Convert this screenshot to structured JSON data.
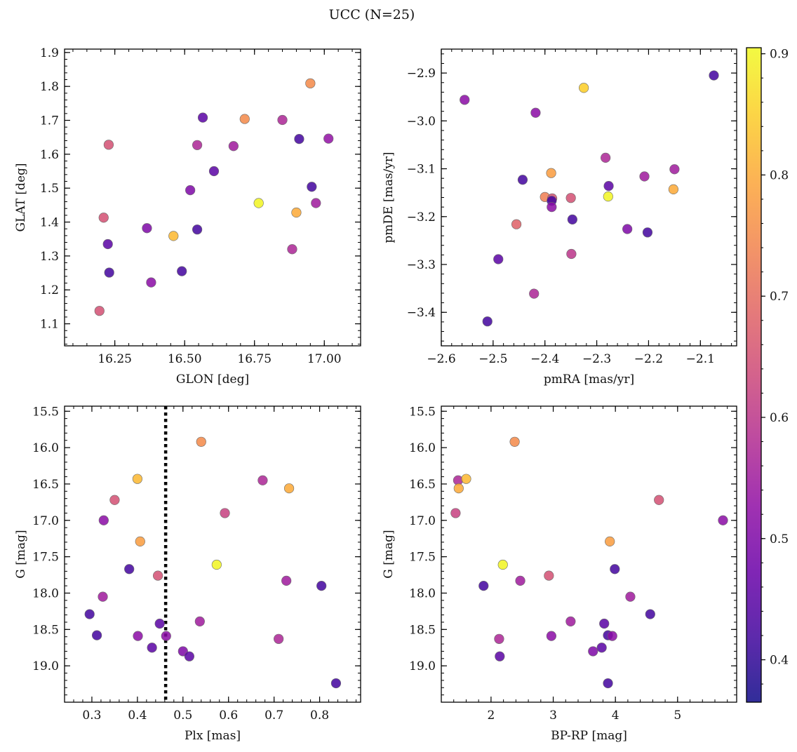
{
  "figure": {
    "title": "UCC (N=25)"
  },
  "colorbar": {
    "colormap": "plasma",
    "range": [
      0.365,
      0.905
    ],
    "ticks": [
      "0.4",
      "0.5",
      "0.6",
      "0.7",
      "0.8",
      "0.9"
    ]
  },
  "chart_data": [
    {
      "type": "scatter",
      "xlabel": "GLON [deg]",
      "ylabel": "GLAT [deg]",
      "xlim": [
        16.07,
        17.13
      ],
      "ylim": [
        1.035,
        1.91
      ],
      "xticks": [
        "16.25",
        "16.50",
        "16.75",
        "17.00"
      ],
      "yticks": [
        "1.1",
        "1.2",
        "1.3",
        "1.4",
        "1.5",
        "1.6",
        "1.7",
        "1.8",
        "1.9"
      ],
      "points": [
        {
          "x": 16.95,
          "y": 1.809,
          "c": 0.75
        },
        {
          "x": 16.715,
          "y": 1.704,
          "c": 0.75
        },
        {
          "x": 16.565,
          "y": 1.708,
          "c": 0.45
        },
        {
          "x": 16.85,
          "y": 1.701,
          "c": 0.57
        },
        {
          "x": 16.91,
          "y": 1.645,
          "c": 0.42
        },
        {
          "x": 17.015,
          "y": 1.646,
          "c": 0.53
        },
        {
          "x": 16.228,
          "y": 1.628,
          "c": 0.65
        },
        {
          "x": 16.545,
          "y": 1.627,
          "c": 0.57
        },
        {
          "x": 16.675,
          "y": 1.624,
          "c": 0.55
        },
        {
          "x": 16.605,
          "y": 1.55,
          "c": 0.45
        },
        {
          "x": 16.955,
          "y": 1.504,
          "c": 0.42
        },
        {
          "x": 16.52,
          "y": 1.494,
          "c": 0.5
        },
        {
          "x": 16.765,
          "y": 1.456,
          "c": 0.9
        },
        {
          "x": 16.97,
          "y": 1.456,
          "c": 0.55
        },
        {
          "x": 16.9,
          "y": 1.428,
          "c": 0.8
        },
        {
          "x": 16.21,
          "y": 1.413,
          "c": 0.65
        },
        {
          "x": 16.365,
          "y": 1.382,
          "c": 0.5
        },
        {
          "x": 16.545,
          "y": 1.378,
          "c": 0.42
        },
        {
          "x": 16.46,
          "y": 1.359,
          "c": 0.82
        },
        {
          "x": 16.225,
          "y": 1.335,
          "c": 0.45
        },
        {
          "x": 16.885,
          "y": 1.32,
          "c": 0.57
        },
        {
          "x": 16.49,
          "y": 1.255,
          "c": 0.42
        },
        {
          "x": 16.23,
          "y": 1.251,
          "c": 0.42
        },
        {
          "x": 16.38,
          "y": 1.222,
          "c": 0.52
        },
        {
          "x": 16.195,
          "y": 1.138,
          "c": 0.65
        }
      ]
    },
    {
      "type": "scatter",
      "xlabel": "pmRA [mas/yr]",
      "ylabel": "pmDE [mas/yr]",
      "xlim": [
        -2.6,
        -2.03
      ],
      "ylim": [
        -3.47,
        -2.85
      ],
      "xticks": [
        "−2.6",
        "−2.5",
        "−2.4",
        "−2.3",
        "−2.2",
        "−2.1"
      ],
      "yticks": [
        "−3.4",
        "−3.3",
        "−3.2",
        "−3.1",
        "−3.0",
        "−2.9"
      ],
      "points": [
        {
          "x": -2.074,
          "y": -2.905,
          "c": 0.42
        },
        {
          "x": -2.325,
          "y": -2.931,
          "c": 0.85
        },
        {
          "x": -2.555,
          "y": -2.956,
          "c": 0.52
        },
        {
          "x": -2.418,
          "y": -2.983,
          "c": 0.52
        },
        {
          "x": -2.283,
          "y": -3.077,
          "c": 0.57
        },
        {
          "x": -2.15,
          "y": -3.101,
          "c": 0.55
        },
        {
          "x": -2.388,
          "y": -3.109,
          "c": 0.78
        },
        {
          "x": -2.208,
          "y": -3.116,
          "c": 0.55
        },
        {
          "x": -2.443,
          "y": -3.123,
          "c": 0.42
        },
        {
          "x": -2.277,
          "y": -3.136,
          "c": 0.45
        },
        {
          "x": -2.152,
          "y": -3.143,
          "c": 0.8
        },
        {
          "x": -2.278,
          "y": -3.158,
          "c": 0.9
        },
        {
          "x": -2.4,
          "y": -3.159,
          "c": 0.73
        },
        {
          "x": -2.35,
          "y": -3.161,
          "c": 0.65
        },
        {
          "x": -2.386,
          "y": -3.162,
          "c": 0.65
        },
        {
          "x": -2.387,
          "y": -3.167,
          "c": 0.42
        },
        {
          "x": -2.387,
          "y": -3.18,
          "c": 0.52
        },
        {
          "x": -2.347,
          "y": -3.206,
          "c": 0.42
        },
        {
          "x": -2.455,
          "y": -3.216,
          "c": 0.68
        },
        {
          "x": -2.241,
          "y": -3.226,
          "c": 0.5
        },
        {
          "x": -2.202,
          "y": -3.233,
          "c": 0.42
        },
        {
          "x": -2.349,
          "y": -3.278,
          "c": 0.6
        },
        {
          "x": -2.49,
          "y": -3.289,
          "c": 0.45
        },
        {
          "x": -2.421,
          "y": -3.361,
          "c": 0.57
        },
        {
          "x": -2.511,
          "y": -3.419,
          "c": 0.42
        }
      ]
    },
    {
      "type": "scatter",
      "xlabel": "Plx [mas]",
      "ylabel": "G [mag]",
      "xlim": [
        0.24,
        0.89
      ],
      "ylim": [
        19.5,
        15.43
      ],
      "y_inverted": true,
      "xticks": [
        "0.3",
        "0.4",
        "0.5",
        "0.6",
        "0.7",
        "0.8"
      ],
      "yticks": [
        "15.5",
        "16.0",
        "16.5",
        "17.0",
        "17.5",
        "18.0",
        "18.5",
        "19.0"
      ],
      "vline": 0.462,
      "points": [
        {
          "x": 0.54,
          "y": 15.92,
          "c": 0.75
        },
        {
          "x": 0.4,
          "y": 16.43,
          "c": 0.82
        },
        {
          "x": 0.675,
          "y": 16.45,
          "c": 0.57
        },
        {
          "x": 0.733,
          "y": 16.56,
          "c": 0.8
        },
        {
          "x": 0.35,
          "y": 16.72,
          "c": 0.65
        },
        {
          "x": 0.592,
          "y": 16.9,
          "c": 0.62
        },
        {
          "x": 0.326,
          "y": 17.0,
          "c": 0.52
        },
        {
          "x": 0.406,
          "y": 17.29,
          "c": 0.78
        },
        {
          "x": 0.574,
          "y": 17.61,
          "c": 0.9
        },
        {
          "x": 0.382,
          "y": 17.67,
          "c": 0.42
        },
        {
          "x": 0.445,
          "y": 17.76,
          "c": 0.65
        },
        {
          "x": 0.727,
          "y": 17.83,
          "c": 0.55
        },
        {
          "x": 0.804,
          "y": 17.9,
          "c": 0.42
        },
        {
          "x": 0.324,
          "y": 18.05,
          "c": 0.55
        },
        {
          "x": 0.295,
          "y": 18.29,
          "c": 0.42
        },
        {
          "x": 0.537,
          "y": 18.39,
          "c": 0.55
        },
        {
          "x": 0.449,
          "y": 18.42,
          "c": 0.45
        },
        {
          "x": 0.311,
          "y": 18.58,
          "c": 0.42
        },
        {
          "x": 0.401,
          "y": 18.59,
          "c": 0.52
        },
        {
          "x": 0.463,
          "y": 18.59,
          "c": 0.52
        },
        {
          "x": 0.71,
          "y": 18.63,
          "c": 0.57
        },
        {
          "x": 0.432,
          "y": 18.75,
          "c": 0.45
        },
        {
          "x": 0.5,
          "y": 18.8,
          "c": 0.5
        },
        {
          "x": 0.514,
          "y": 18.87,
          "c": 0.45
        },
        {
          "x": 0.836,
          "y": 19.24,
          "c": 0.42
        }
      ]
    },
    {
      "type": "scatter",
      "xlabel": "BP-RP [mag]",
      "ylabel": "G [mag]",
      "xlim": [
        1.2,
        5.95
      ],
      "ylim": [
        19.5,
        15.43
      ],
      "y_inverted": true,
      "xticks": [
        "2",
        "3",
        "4",
        "5"
      ],
      "yticks": [
        "15.5",
        "16.0",
        "16.5",
        "17.0",
        "17.5",
        "18.0",
        "18.5",
        "19.0"
      ],
      "points": [
        {
          "x": 2.38,
          "y": 15.92,
          "c": 0.75
        },
        {
          "x": 1.47,
          "y": 16.45,
          "c": 0.57
        },
        {
          "x": 1.6,
          "y": 16.43,
          "c": 0.82
        },
        {
          "x": 1.48,
          "y": 16.56,
          "c": 0.8
        },
        {
          "x": 4.7,
          "y": 16.72,
          "c": 0.65
        },
        {
          "x": 1.43,
          "y": 16.9,
          "c": 0.62
        },
        {
          "x": 5.73,
          "y": 17.0,
          "c": 0.52
        },
        {
          "x": 3.91,
          "y": 17.29,
          "c": 0.78
        },
        {
          "x": 2.19,
          "y": 17.61,
          "c": 0.9
        },
        {
          "x": 3.99,
          "y": 17.67,
          "c": 0.42
        },
        {
          "x": 2.93,
          "y": 17.76,
          "c": 0.65
        },
        {
          "x": 2.47,
          "y": 17.83,
          "c": 0.55
        },
        {
          "x": 1.88,
          "y": 17.9,
          "c": 0.42
        },
        {
          "x": 4.24,
          "y": 18.05,
          "c": 0.55
        },
        {
          "x": 4.56,
          "y": 18.29,
          "c": 0.42
        },
        {
          "x": 3.28,
          "y": 18.39,
          "c": 0.55
        },
        {
          "x": 3.82,
          "y": 18.42,
          "c": 0.45
        },
        {
          "x": 3.88,
          "y": 18.58,
          "c": 0.42
        },
        {
          "x": 3.95,
          "y": 18.59,
          "c": 0.52
        },
        {
          "x": 2.97,
          "y": 18.59,
          "c": 0.52
        },
        {
          "x": 2.13,
          "y": 18.63,
          "c": 0.57
        },
        {
          "x": 3.78,
          "y": 18.75,
          "c": 0.45
        },
        {
          "x": 3.64,
          "y": 18.8,
          "c": 0.5
        },
        {
          "x": 2.14,
          "y": 18.87,
          "c": 0.45
        },
        {
          "x": 3.88,
          "y": 19.24,
          "c": 0.42
        }
      ]
    }
  ]
}
